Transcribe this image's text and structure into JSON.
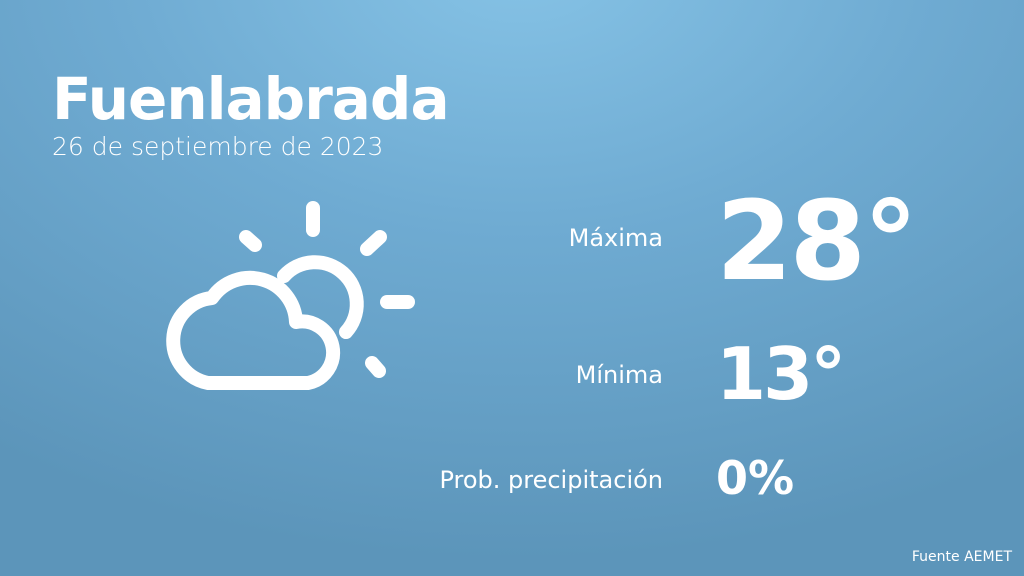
{
  "location": {
    "city": "Fuenlabrada",
    "date": "26 de septiembre de 2023"
  },
  "weather_icon": "partly-cloudy-sun-icon",
  "forecast": {
    "max_label": "Máxima",
    "max_value": "28°",
    "min_label": "Mínima",
    "min_value": "13°",
    "precip_label": "Prob. precipitación",
    "precip_value": "0%"
  },
  "source": "Fuente AEMET",
  "colors": {
    "background_top": "#86c3e6",
    "background_bottom": "#5c95ba",
    "text": "#ffffff"
  }
}
